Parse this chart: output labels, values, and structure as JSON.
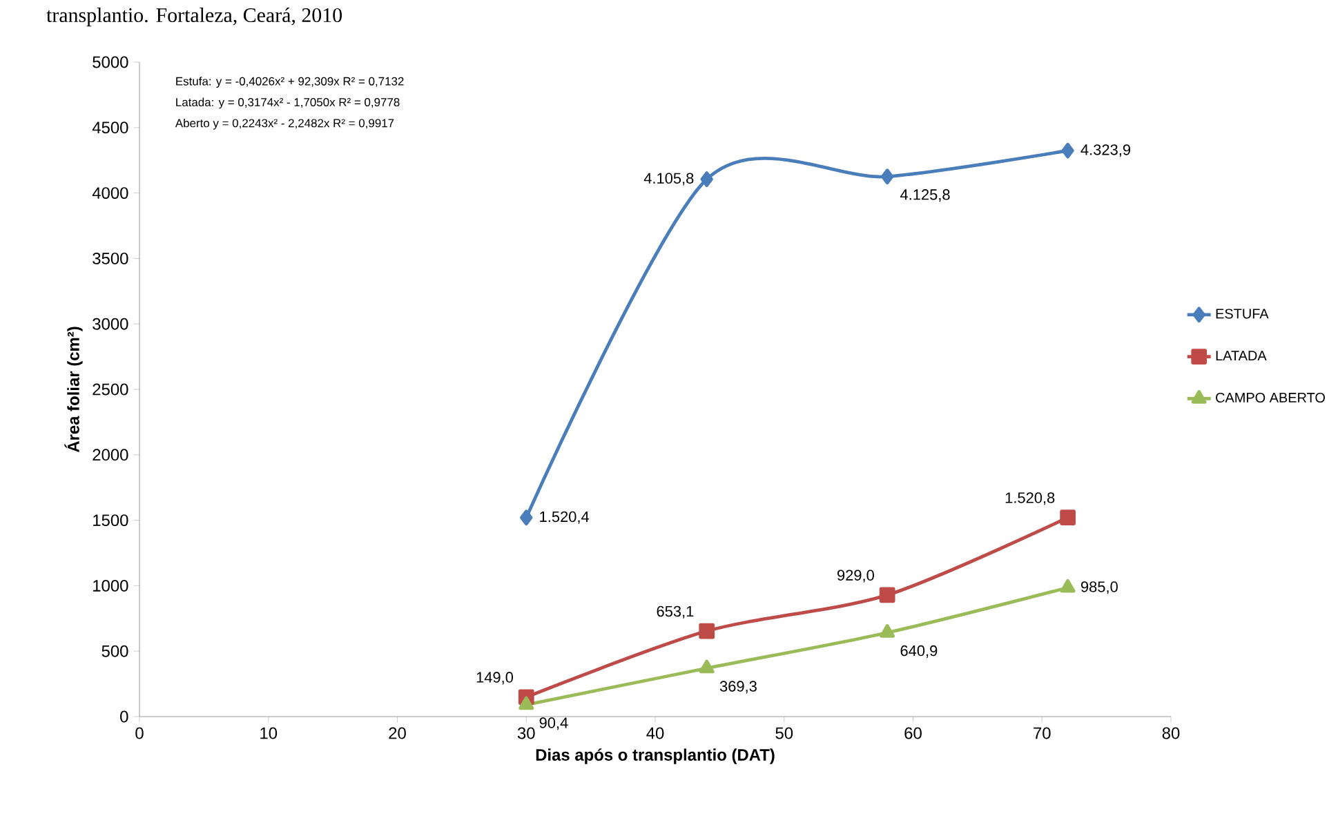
{
  "chart_data": {
    "type": "line",
    "title": "transplantio. Fortaleza, Ceará, 2010",
    "xlabel": "Dias após o transplantio (DAT)",
    "ylabel": "Área foliar (cm²)",
    "annotations": [
      "Estufa:   y = -0,4026x² + 92,309x   R² = 0,7132",
      "Latada:  y =  0,3174x²  - 1,7050x   R² = 0,9778",
      "Aberto   y =  0,2243x²  - 2,2482x   R² = 0,9917"
    ],
    "x": [
      30,
      44,
      58,
      72
    ],
    "series": [
      {
        "name": "ESTUFA",
        "color": "#4a7ebb",
        "marker": "diamond",
        "values": [
          1520.4,
          4105.8,
          4125.8,
          4323.9
        ],
        "value_labels": [
          "1.520,4",
          "4.105,8",
          "4.125,8",
          "4.323,9"
        ]
      },
      {
        "name": "LATADA",
        "color": "#be4b48",
        "marker": "square",
        "values": [
          149.0,
          653.1,
          929.0,
          1520.8
        ],
        "value_labels": [
          "149,0",
          "653,1",
          "929,0",
          "1.520,8"
        ]
      },
      {
        "name": "CAMPO ABERTO",
        "color": "#9bbb59",
        "marker": "triangle",
        "values": [
          90.4,
          369.3,
          640.9,
          985.0
        ],
        "value_labels": [
          "90,4",
          "369,3",
          "640,9",
          "985,0"
        ]
      }
    ],
    "xlim": [
      0,
      80
    ],
    "xticks": [
      0,
      10,
      20,
      30,
      40,
      50,
      60,
      70,
      80
    ],
    "ylim": [
      0,
      5000
    ],
    "yticks": [
      0,
      500,
      1000,
      1500,
      2000,
      2500,
      3000,
      3500,
      4000,
      4500,
      5000
    ],
    "grid": false,
    "legend": "right",
    "line_style": "solid"
  }
}
